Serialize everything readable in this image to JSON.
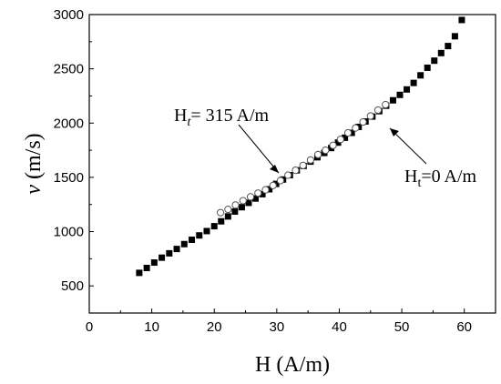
{
  "chart_data": {
    "type": "scatter",
    "xlim": [
      0,
      65
    ],
    "ylim": [
      250,
      3000
    ],
    "x_ticks": [
      0,
      10,
      20,
      30,
      40,
      50,
      60
    ],
    "y_ticks": [
      500,
      1000,
      1500,
      2000,
      2500,
      3000
    ],
    "x_tick_labels": [
      "0",
      "10",
      "20",
      "30",
      "40",
      "50",
      "60"
    ],
    "y_tick_labels": [
      "500",
      "1000",
      "1500",
      "2000",
      "2500",
      "3000"
    ],
    "xlabel": "H (A/m)",
    "ylabel": {
      "var": "v",
      "unit": " (m/s)"
    },
    "grid": false,
    "legend": null,
    "series": [
      {
        "marker": "filled-square",
        "x": [
          8.0,
          9.2,
          10.4,
          11.6,
          12.8,
          14.0,
          15.2,
          16.4,
          17.6,
          18.8,
          20.0,
          21.1,
          22.2,
          23.3,
          24.4,
          25.5,
          26.6,
          27.7,
          28.8,
          29.9,
          31.0,
          32.1,
          33.2,
          34.3,
          35.4,
          36.5,
          37.6,
          38.7,
          39.8,
          40.9,
          42.0,
          43.1,
          44.2,
          45.3,
          46.4,
          47.5,
          48.6,
          49.7,
          50.8,
          51.9,
          53.0,
          54.1,
          55.2,
          56.3,
          57.4,
          58.5,
          59.6
        ],
        "y": [
          620,
          665,
          715,
          760,
          800,
          840,
          885,
          925,
          965,
          1005,
          1050,
          1095,
          1140,
          1185,
          1225,
          1265,
          1305,
          1345,
          1390,
          1440,
          1480,
          1520,
          1565,
          1605,
          1645,
          1685,
          1725,
          1770,
          1820,
          1865,
          1910,
          1965,
          2015,
          2060,
          2110,
          2160,
          2210,
          2260,
          2310,
          2370,
          2440,
          2510,
          2575,
          2645,
          2710,
          2800,
          2950
        ]
      },
      {
        "marker": "open-circle",
        "x": [
          21.0,
          22.2,
          23.4,
          24.6,
          25.8,
          27.0,
          28.2,
          29.4,
          30.6,
          31.8,
          33.0,
          34.2,
          35.4,
          36.6,
          37.8,
          39.0,
          40.2,
          41.4,
          42.6,
          43.8,
          45.0,
          46.2,
          47.4
        ],
        "y": [
          1175,
          1205,
          1245,
          1285,
          1320,
          1355,
          1385,
          1425,
          1470,
          1520,
          1565,
          1610,
          1660,
          1710,
          1750,
          1795,
          1850,
          1910,
          1955,
          2010,
          2065,
          2120,
          2170
        ]
      }
    ],
    "annotations": [
      {
        "label_main": "H",
        "label_sub": "t",
        "label_rest": "= 315 A/m"
      },
      {
        "label_main": "H",
        "label_sub": "t",
        "label_rest": "=0 A/m"
      }
    ]
  }
}
